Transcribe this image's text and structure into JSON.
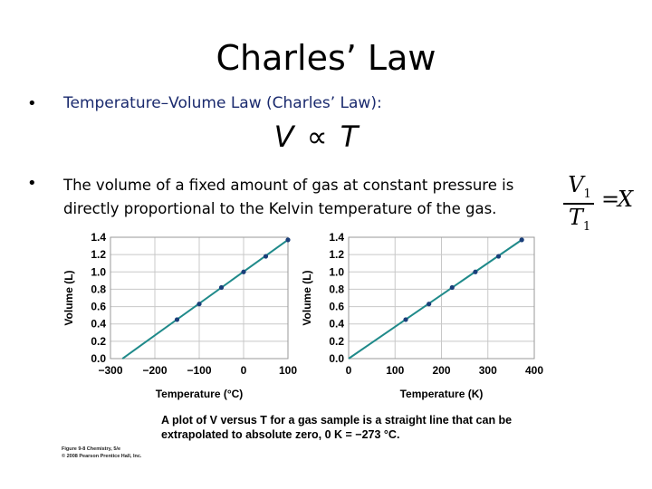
{
  "slide": {
    "title": "Charles’ Law",
    "bullets": [
      {
        "symbol": "•",
        "text": "Temperature–Volume Law (Charles’ Law):"
      },
      {
        "symbol": "•",
        "text": "The volume of a fixed amount of gas at constant pressure is directly proportional to the Kelvin temperature of the gas."
      }
    ],
    "proportionality": "V ∝ T",
    "ratio": {
      "numerator": "V",
      "numerator_sub": "1",
      "denominator": "T",
      "denominator_sub": "1",
      "equals": "=",
      "rhs": "X"
    },
    "caption": "A plot of V versus T for a gas sample is a straight line that can be extrapolated to absolute zero, 0 K = −273 °C.",
    "credit_line1": "Figure 9-8  Chemistry, 5/e",
    "credit_line2": "© 2008 Pearson Prentice Hall, Inc.",
    "colors": {
      "line": "#1f8a8a",
      "point": "#1a3f7a",
      "grid": "#c8c8c8",
      "bullet1_text": "#1a2a6e"
    }
  },
  "chart_data": [
    {
      "type": "line",
      "xlabel": "Temperature (°C)",
      "ylabel": "Volume (L)",
      "xlim": [
        -300,
        100
      ],
      "ylim": [
        0,
        1.4
      ],
      "xticks": [
        -300,
        -200,
        -100,
        0,
        100
      ],
      "xtick_labels": [
        "−300",
        "−200",
        "−100",
        "0",
        "100"
      ],
      "yticks": [
        0,
        0.2,
        0.4,
        0.6,
        0.8,
        1.0,
        1.2,
        1.4
      ],
      "ytick_labels": [
        "0.0",
        "0.2",
        "0.4",
        "0.6",
        "0.8",
        "1.0",
        "1.2",
        "1.4"
      ],
      "grid": true,
      "line": {
        "x": [
          -273,
          100
        ],
        "y": [
          0,
          1.37
        ]
      },
      "points": {
        "x": [
          -150,
          -100,
          -50,
          0,
          50,
          100
        ],
        "y": [
          0.45,
          0.63,
          0.82,
          1.0,
          1.18,
          1.37
        ]
      }
    },
    {
      "type": "line",
      "xlabel": "Temperature (K)",
      "ylabel": "Volume (L)",
      "xlim": [
        0,
        400
      ],
      "ylim": [
        0,
        1.4
      ],
      "xticks": [
        0,
        100,
        200,
        300,
        400
      ],
      "xtick_labels": [
        "0",
        "100",
        "200",
        "300",
        "400"
      ],
      "yticks": [
        0,
        0.2,
        0.4,
        0.6,
        0.8,
        1.0,
        1.2,
        1.4
      ],
      "ytick_labels": [
        "0.0",
        "0.2",
        "0.4",
        "0.6",
        "0.8",
        "1.0",
        "1.2",
        "1.4"
      ],
      "grid": true,
      "line": {
        "x": [
          0,
          373
        ],
        "y": [
          0,
          1.37
        ]
      },
      "points": {
        "x": [
          123,
          173,
          223,
          273,
          323,
          373
        ],
        "y": [
          0.45,
          0.63,
          0.82,
          1.0,
          1.18,
          1.37
        ]
      }
    }
  ]
}
